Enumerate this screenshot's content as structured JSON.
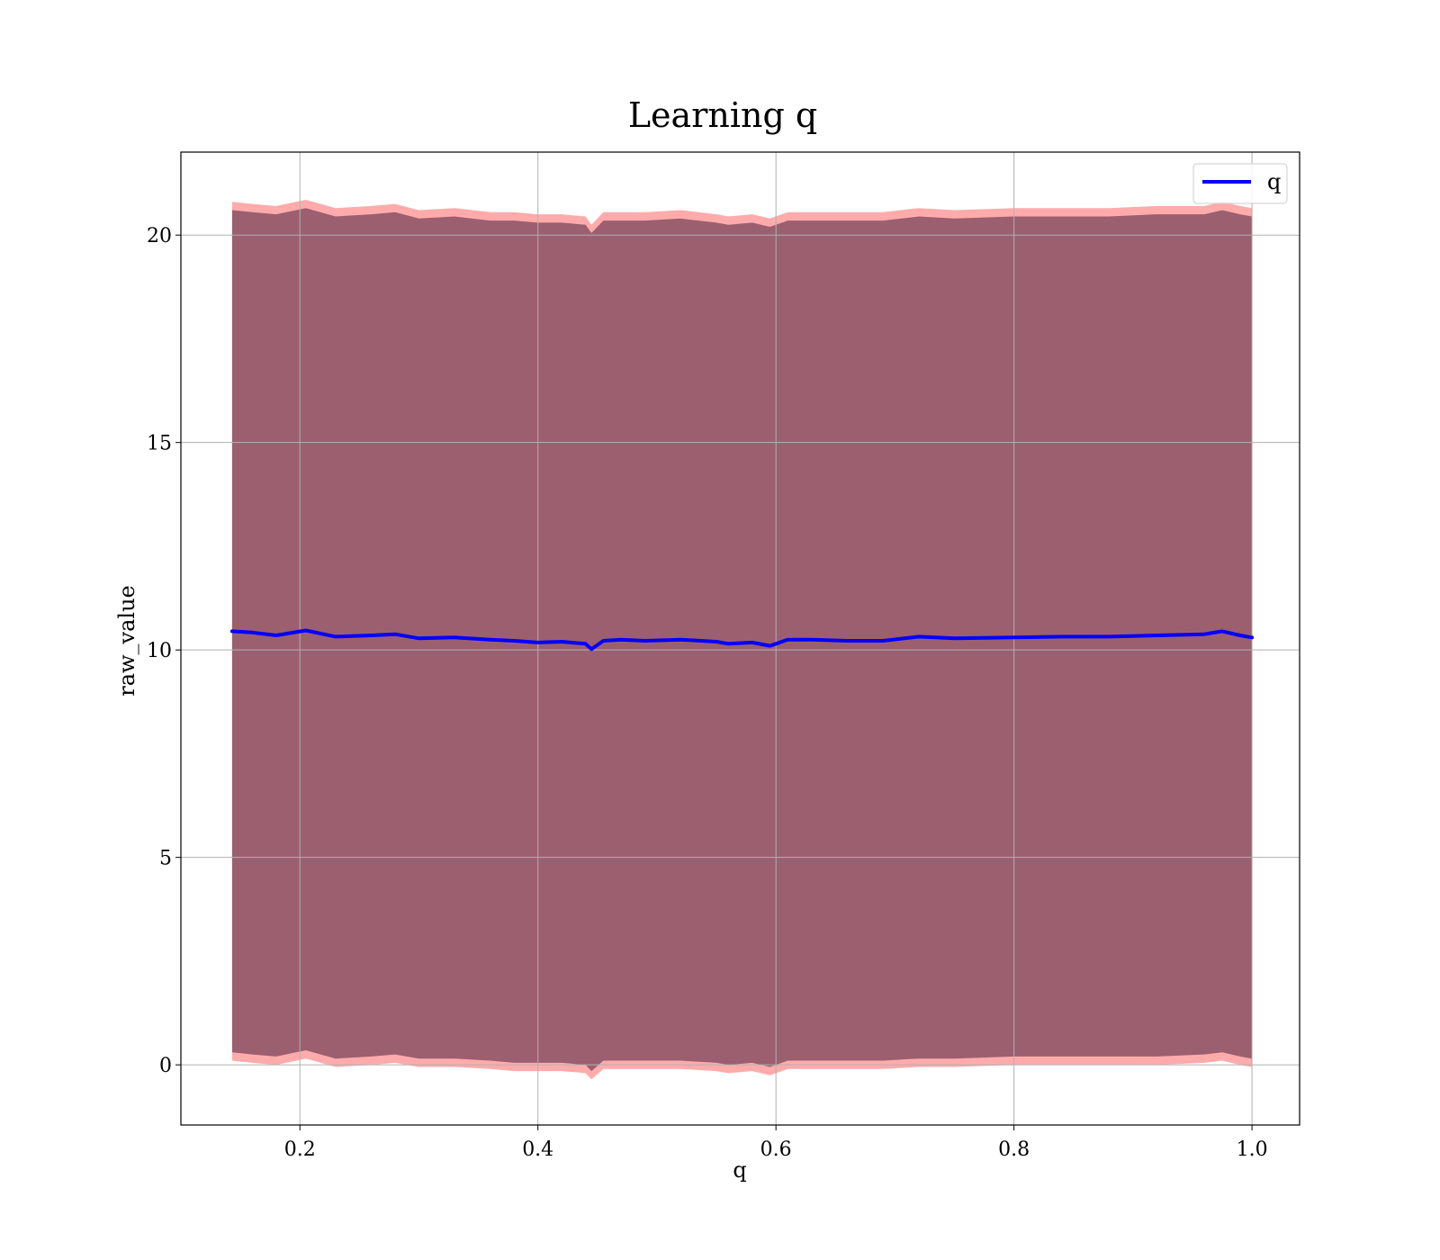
{
  "chart_data": {
    "type": "line",
    "title": "Learning q",
    "xlabel": "q",
    "ylabel": "raw_value",
    "xlim": [
      0.1,
      1.04
    ],
    "ylim": [
      -1.45,
      22
    ],
    "xticks": [
      0.2,
      0.4,
      0.6,
      0.8,
      1.0
    ],
    "xtick_labels": [
      "0.2",
      "0.4",
      "0.6",
      "0.8",
      "1.0"
    ],
    "yticks": [
      0,
      5,
      10,
      15,
      20
    ],
    "ytick_labels": [
      "0",
      "5",
      "10",
      "15",
      "20"
    ],
    "grid": true,
    "legend": {
      "placement": "top-right",
      "entries": [
        "q"
      ]
    },
    "series": [
      {
        "name": "q",
        "color": "#0000ff",
        "x": [
          0.143,
          0.16,
          0.18,
          0.205,
          0.23,
          0.26,
          0.28,
          0.3,
          0.33,
          0.36,
          0.38,
          0.4,
          0.42,
          0.44,
          0.445,
          0.455,
          0.47,
          0.49,
          0.52,
          0.55,
          0.56,
          0.58,
          0.595,
          0.61,
          0.63,
          0.66,
          0.69,
          0.72,
          0.75,
          0.8,
          0.84,
          0.88,
          0.92,
          0.96,
          0.975,
          0.99,
          1.0
        ],
        "y": [
          10.45,
          10.42,
          10.35,
          10.47,
          10.32,
          10.35,
          10.38,
          10.28,
          10.3,
          10.25,
          10.22,
          10.18,
          10.2,
          10.15,
          10.02,
          10.22,
          10.25,
          10.22,
          10.25,
          10.2,
          10.15,
          10.18,
          10.1,
          10.25,
          10.25,
          10.22,
          10.22,
          10.32,
          10.28,
          10.3,
          10.32,
          10.32,
          10.35,
          10.38,
          10.45,
          10.35,
          10.3
        ]
      }
    ],
    "bands": [
      {
        "color": "#ff4444",
        "upper": [
          20.8,
          20.75,
          20.7,
          20.85,
          20.65,
          20.7,
          20.75,
          20.6,
          20.65,
          20.55,
          20.55,
          20.5,
          20.5,
          20.45,
          20.25,
          20.55,
          20.55,
          20.55,
          20.6,
          20.5,
          20.45,
          20.5,
          20.4,
          20.55,
          20.55,
          20.55,
          20.55,
          20.65,
          20.6,
          20.65,
          20.65,
          20.65,
          20.7,
          20.7,
          20.8,
          20.7,
          20.65
        ],
        "lower": [
          0.1,
          0.05,
          0.0,
          0.15,
          -0.05,
          0.0,
          0.05,
          -0.05,
          -0.05,
          -0.1,
          -0.15,
          -0.15,
          -0.15,
          -0.2,
          -0.35,
          -0.1,
          -0.1,
          -0.1,
          -0.1,
          -0.15,
          -0.2,
          -0.15,
          -0.25,
          -0.1,
          -0.1,
          -0.1,
          -0.1,
          -0.05,
          -0.05,
          0.0,
          0.0,
          0.0,
          0.0,
          0.05,
          0.1,
          0.0,
          -0.05
        ]
      },
      {
        "color": "#4a2040",
        "upper": [
          20.6,
          20.55,
          20.5,
          20.65,
          20.45,
          20.5,
          20.55,
          20.4,
          20.45,
          20.35,
          20.35,
          20.3,
          20.3,
          20.25,
          20.05,
          20.35,
          20.35,
          20.35,
          20.4,
          20.3,
          20.25,
          20.3,
          20.2,
          20.35,
          20.35,
          20.35,
          20.35,
          20.45,
          20.4,
          20.45,
          20.45,
          20.45,
          20.5,
          20.5,
          20.6,
          20.5,
          20.45
        ],
        "lower": [
          0.3,
          0.25,
          0.2,
          0.35,
          0.15,
          0.2,
          0.25,
          0.15,
          0.15,
          0.1,
          0.05,
          0.05,
          0.05,
          0.0,
          -0.15,
          0.1,
          0.1,
          0.1,
          0.1,
          0.05,
          0.0,
          0.05,
          -0.05,
          0.1,
          0.1,
          0.1,
          0.1,
          0.15,
          0.15,
          0.2,
          0.2,
          0.2,
          0.2,
          0.25,
          0.3,
          0.2,
          0.15
        ]
      }
    ]
  }
}
